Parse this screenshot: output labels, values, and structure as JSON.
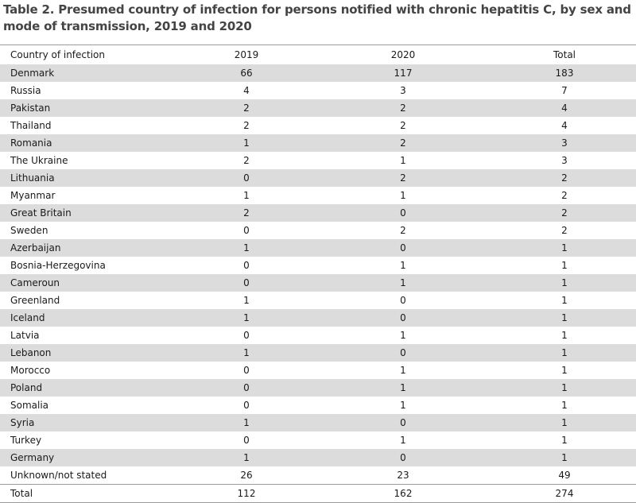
{
  "title": "Table 2. Presumed country of infection for persons notified with chronic hepatitis C, by sex and mode of transmission, 2019 and 2020",
  "table": {
    "columns": [
      "Country of infection",
      "2019",
      "2020",
      "Total"
    ],
    "rows": [
      {
        "country": "Denmark",
        "y2019": "66",
        "y2020": "117",
        "total": "183"
      },
      {
        "country": "Russia",
        "y2019": "4",
        "y2020": "3",
        "total": "7"
      },
      {
        "country": "Pakistan",
        "y2019": "2",
        "y2020": "2",
        "total": "4"
      },
      {
        "country": "Thailand",
        "y2019": "2",
        "y2020": "2",
        "total": "4"
      },
      {
        "country": "Romania",
        "y2019": "1",
        "y2020": "2",
        "total": "3"
      },
      {
        "country": "The Ukraine",
        "y2019": "2",
        "y2020": "1",
        "total": "3"
      },
      {
        "country": "Lithuania",
        "y2019": "0",
        "y2020": "2",
        "total": "2"
      },
      {
        "country": "Myanmar",
        "y2019": "1",
        "y2020": "1",
        "total": "2"
      },
      {
        "country": "Great Britain",
        "y2019": "2",
        "y2020": "0",
        "total": "2"
      },
      {
        "country": "Sweden",
        "y2019": "0",
        "y2020": "2",
        "total": "2"
      },
      {
        "country": "Azerbaijan",
        "y2019": "1",
        "y2020": "0",
        "total": "1"
      },
      {
        "country": "Bosnia-Herzegovina",
        "y2019": "0",
        "y2020": "1",
        "total": "1"
      },
      {
        "country": "Cameroun",
        "y2019": "0",
        "y2020": "1",
        "total": "1"
      },
      {
        "country": "Greenland",
        "y2019": "1",
        "y2020": "0",
        "total": "1"
      },
      {
        "country": "Iceland",
        "y2019": "1",
        "y2020": "0",
        "total": "1"
      },
      {
        "country": "Latvia",
        "y2019": "0",
        "y2020": "1",
        "total": "1"
      },
      {
        "country": "Lebanon",
        "y2019": "1",
        "y2020": "0",
        "total": "1"
      },
      {
        "country": "Morocco",
        "y2019": "0",
        "y2020": "1",
        "total": "1"
      },
      {
        "country": "Poland",
        "y2019": "0",
        "y2020": "1",
        "total": "1"
      },
      {
        "country": "Somalia",
        "y2019": "0",
        "y2020": "1",
        "total": "1"
      },
      {
        "country": "Syria",
        "y2019": "1",
        "y2020": "0",
        "total": "1"
      },
      {
        "country": "Turkey",
        "y2019": "0",
        "y2020": "1",
        "total": "1"
      },
      {
        "country": "Germany",
        "y2019": "1",
        "y2020": "0",
        "total": "1"
      },
      {
        "country": "Unknown/not stated",
        "y2019": "26",
        "y2020": "23",
        "total": "49"
      }
    ],
    "total_row": {
      "country": "Total",
      "y2019": "112",
      "y2020": "162",
      "total": "274"
    }
  },
  "colors": {
    "stripe": "#dcdcdc",
    "title_text": "#444444",
    "rule": "#9a9a9a"
  }
}
